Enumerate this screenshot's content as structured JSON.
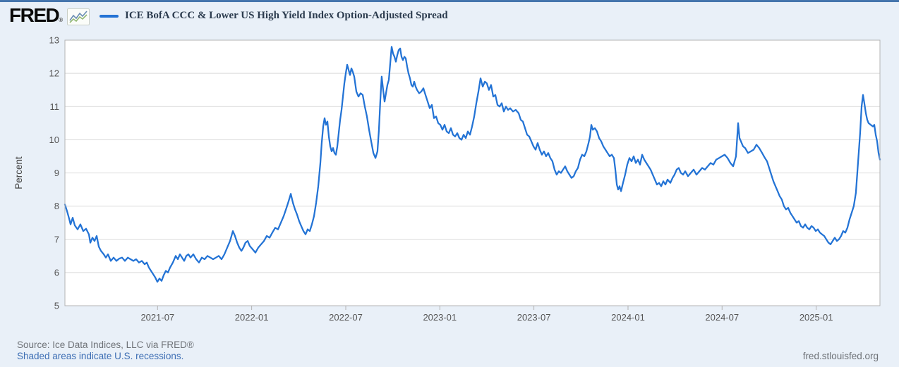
{
  "header": {
    "logo_text": "FRED",
    "logo_registered_mark": "®",
    "series_label": "ICE BofA CCC & Lower US High Yield Index Option-Adjusted Spread"
  },
  "footer": {
    "source": "Source: Ice Data Indices, LLC via FRED®",
    "recession_note": "Shaded areas indicate U.S. recessions.",
    "site": "fred.stlouisfed.org"
  },
  "colors": {
    "line": "#2373d5",
    "top_bar": "#4575ad",
    "page_bg": "#e9f0f8",
    "plot_bg": "#ffffff",
    "grid": "#d9d9d9",
    "plot_border": "#b3b3b3",
    "tick_text": "#555555",
    "axis_label_text": "#444444",
    "source_text": "#6e7277",
    "link_text": "#3d6eb4",
    "title_text": "#2b3b4e"
  },
  "chart_data": {
    "type": "line",
    "title": "ICE BofA CCC & Lower US High Yield Index Option-Adjusted Spread",
    "ylabel": "Percent",
    "ylim": [
      5,
      13
    ],
    "y_ticks": [
      5,
      6,
      7,
      8,
      9,
      10,
      11,
      12,
      13
    ],
    "grid": true,
    "legend_position": "top",
    "x_range": [
      "2021-01",
      "2025-05"
    ],
    "x_ticks": [
      {
        "label": "2021-07",
        "f": 0.1137
      },
      {
        "label": "2022-01",
        "f": 0.2291
      },
      {
        "label": "2022-07",
        "f": 0.3446
      },
      {
        "label": "2023-01",
        "f": 0.46
      },
      {
        "label": "2023-07",
        "f": 0.5754
      },
      {
        "label": "2024-01",
        "f": 0.6909
      },
      {
        "label": "2024-07",
        "f": 0.8063
      },
      {
        "label": "2025-01",
        "f": 0.9218
      }
    ],
    "points_format": "[fraction_of_x_axis, percent]",
    "points": [
      [
        0.0,
        8.05
      ],
      [
        0.0026,
        7.85
      ],
      [
        0.0052,
        7.62
      ],
      [
        0.0069,
        7.45
      ],
      [
        0.0095,
        7.65
      ],
      [
        0.0121,
        7.42
      ],
      [
        0.0156,
        7.3
      ],
      [
        0.019,
        7.45
      ],
      [
        0.0225,
        7.25
      ],
      [
        0.026,
        7.32
      ],
      [
        0.0294,
        7.15
      ],
      [
        0.0312,
        6.9
      ],
      [
        0.0338,
        7.05
      ],
      [
        0.0364,
        6.95
      ],
      [
        0.039,
        7.1
      ],
      [
        0.0416,
        6.78
      ],
      [
        0.0442,
        6.65
      ],
      [
        0.0476,
        6.55
      ],
      [
        0.0502,
        6.45
      ],
      [
        0.0528,
        6.55
      ],
      [
        0.0563,
        6.35
      ],
      [
        0.0597,
        6.45
      ],
      [
        0.0632,
        6.35
      ],
      [
        0.0667,
        6.42
      ],
      [
        0.0701,
        6.45
      ],
      [
        0.0736,
        6.35
      ],
      [
        0.0771,
        6.45
      ],
      [
        0.0805,
        6.4
      ],
      [
        0.084,
        6.35
      ],
      [
        0.0874,
        6.4
      ],
      [
        0.0909,
        6.3
      ],
      [
        0.0944,
        6.35
      ],
      [
        0.0978,
        6.25
      ],
      [
        0.1004,
        6.3
      ],
      [
        0.103,
        6.15
      ],
      [
        0.1056,
        6.05
      ],
      [
        0.1082,
        5.95
      ],
      [
        0.1108,
        5.85
      ],
      [
        0.1134,
        5.72
      ],
      [
        0.116,
        5.82
      ],
      [
        0.1186,
        5.75
      ],
      [
        0.1212,
        5.92
      ],
      [
        0.1238,
        6.05
      ],
      [
        0.1264,
        6.0
      ],
      [
        0.129,
        6.15
      ],
      [
        0.1325,
        6.3
      ],
      [
        0.1359,
        6.5
      ],
      [
        0.1385,
        6.4
      ],
      [
        0.1411,
        6.55
      ],
      [
        0.1437,
        6.45
      ],
      [
        0.1463,
        6.35
      ],
      [
        0.1489,
        6.5
      ],
      [
        0.1515,
        6.55
      ],
      [
        0.1541,
        6.45
      ],
      [
        0.1576,
        6.55
      ],
      [
        0.161,
        6.4
      ],
      [
        0.1645,
        6.3
      ],
      [
        0.168,
        6.45
      ],
      [
        0.1714,
        6.4
      ],
      [
        0.1749,
        6.5
      ],
      [
        0.1784,
        6.45
      ],
      [
        0.1818,
        6.4
      ],
      [
        0.1853,
        6.45
      ],
      [
        0.1887,
        6.5
      ],
      [
        0.1922,
        6.4
      ],
      [
        0.1957,
        6.55
      ],
      [
        0.1991,
        6.75
      ],
      [
        0.2026,
        6.95
      ],
      [
        0.2061,
        7.25
      ],
      [
        0.2087,
        7.1
      ],
      [
        0.2113,
        6.9
      ],
      [
        0.2139,
        6.75
      ],
      [
        0.2165,
        6.65
      ],
      [
        0.219,
        6.75
      ],
      [
        0.2216,
        6.9
      ],
      [
        0.2242,
        6.95
      ],
      [
        0.2268,
        6.8
      ],
      [
        0.2303,
        6.7
      ],
      [
        0.2338,
        6.6
      ],
      [
        0.2372,
        6.75
      ],
      [
        0.2407,
        6.85
      ],
      [
        0.2442,
        6.95
      ],
      [
        0.2476,
        7.1
      ],
      [
        0.2511,
        7.05
      ],
      [
        0.2545,
        7.2
      ],
      [
        0.258,
        7.35
      ],
      [
        0.2615,
        7.3
      ],
      [
        0.2649,
        7.5
      ],
      [
        0.2684,
        7.7
      ],
      [
        0.2719,
        7.95
      ],
      [
        0.2745,
        8.15
      ],
      [
        0.2771,
        8.37
      ],
      [
        0.2797,
        8.1
      ],
      [
        0.2823,
        7.9
      ],
      [
        0.2848,
        7.75
      ],
      [
        0.2874,
        7.55
      ],
      [
        0.29,
        7.4
      ],
      [
        0.2926,
        7.25
      ],
      [
        0.2952,
        7.15
      ],
      [
        0.2978,
        7.3
      ],
      [
        0.3004,
        7.25
      ],
      [
        0.303,
        7.45
      ],
      [
        0.3056,
        7.7
      ],
      [
        0.3082,
        8.1
      ],
      [
        0.3108,
        8.6
      ],
      [
        0.3134,
        9.3
      ],
      [
        0.3151,
        9.9
      ],
      [
        0.3169,
        10.4
      ],
      [
        0.3186,
        10.65
      ],
      [
        0.3203,
        10.45
      ],
      [
        0.3221,
        10.55
      ],
      [
        0.3238,
        10.1
      ],
      [
        0.3255,
        9.8
      ],
      [
        0.3273,
        9.65
      ],
      [
        0.329,
        9.75
      ],
      [
        0.3307,
        9.6
      ],
      [
        0.3325,
        9.55
      ],
      [
        0.3342,
        9.8
      ],
      [
        0.3359,
        10.2
      ],
      [
        0.3377,
        10.6
      ],
      [
        0.3394,
        10.9
      ],
      [
        0.3411,
        11.3
      ],
      [
        0.3429,
        11.7
      ],
      [
        0.3446,
        12.0
      ],
      [
        0.3463,
        12.26
      ],
      [
        0.3481,
        12.1
      ],
      [
        0.3498,
        11.95
      ],
      [
        0.3515,
        12.15
      ],
      [
        0.3532,
        12.05
      ],
      [
        0.355,
        11.9
      ],
      [
        0.3576,
        11.45
      ],
      [
        0.3602,
        11.3
      ],
      [
        0.3628,
        11.4
      ],
      [
        0.3654,
        11.35
      ],
      [
        0.368,
        11.0
      ],
      [
        0.3706,
        10.7
      ],
      [
        0.3732,
        10.3
      ],
      [
        0.3758,
        9.95
      ],
      [
        0.3784,
        9.6
      ],
      [
        0.381,
        9.45
      ],
      [
        0.3835,
        9.65
      ],
      [
        0.3853,
        10.3
      ],
      [
        0.387,
        11.2
      ],
      [
        0.3887,
        11.9
      ],
      [
        0.3905,
        11.5
      ],
      [
        0.3922,
        11.15
      ],
      [
        0.3939,
        11.4
      ],
      [
        0.3957,
        11.65
      ],
      [
        0.3974,
        11.8
      ],
      [
        0.3991,
        12.3
      ],
      [
        0.4009,
        12.8
      ],
      [
        0.4026,
        12.6
      ],
      [
        0.4043,
        12.5
      ],
      [
        0.4061,
        12.35
      ],
      [
        0.4078,
        12.55
      ],
      [
        0.4095,
        12.7
      ],
      [
        0.4113,
        12.75
      ],
      [
        0.413,
        12.5
      ],
      [
        0.4147,
        12.4
      ],
      [
        0.4165,
        12.5
      ],
      [
        0.4182,
        12.45
      ],
      [
        0.4199,
        12.2
      ],
      [
        0.4216,
        12.0
      ],
      [
        0.4234,
        11.85
      ],
      [
        0.4251,
        11.65
      ],
      [
        0.4268,
        11.6
      ],
      [
        0.4286,
        11.75
      ],
      [
        0.4303,
        11.6
      ],
      [
        0.432,
        11.5
      ],
      [
        0.4346,
        11.4
      ],
      [
        0.4372,
        11.45
      ],
      [
        0.4398,
        11.55
      ],
      [
        0.4424,
        11.35
      ],
      [
        0.445,
        11.15
      ],
      [
        0.4476,
        10.95
      ],
      [
        0.4502,
        11.05
      ],
      [
        0.4528,
        10.65
      ],
      [
        0.4554,
        10.7
      ],
      [
        0.458,
        10.5
      ],
      [
        0.4606,
        10.45
      ],
      [
        0.4632,
        10.3
      ],
      [
        0.4658,
        10.45
      ],
      [
        0.4684,
        10.25
      ],
      [
        0.471,
        10.2
      ],
      [
        0.4736,
        10.35
      ],
      [
        0.4762,
        10.15
      ],
      [
        0.4788,
        10.1
      ],
      [
        0.4814,
        10.2
      ],
      [
        0.484,
        10.05
      ],
      [
        0.4866,
        10.0
      ],
      [
        0.4892,
        10.15
      ],
      [
        0.4918,
        10.05
      ],
      [
        0.4944,
        10.25
      ],
      [
        0.497,
        10.15
      ],
      [
        0.4996,
        10.4
      ],
      [
        0.5022,
        10.7
      ],
      [
        0.5048,
        11.1
      ],
      [
        0.5074,
        11.45
      ],
      [
        0.51,
        11.85
      ],
      [
        0.5126,
        11.6
      ],
      [
        0.5152,
        11.75
      ],
      [
        0.5177,
        11.7
      ],
      [
        0.5203,
        11.5
      ],
      [
        0.5229,
        11.65
      ],
      [
        0.5255,
        11.3
      ],
      [
        0.5281,
        11.35
      ],
      [
        0.5307,
        11.05
      ],
      [
        0.5333,
        11.0
      ],
      [
        0.5359,
        11.1
      ],
      [
        0.5385,
        10.85
      ],
      [
        0.5411,
        11.0
      ],
      [
        0.5437,
        10.9
      ],
      [
        0.5463,
        10.95
      ],
      [
        0.5498,
        10.85
      ],
      [
        0.5532,
        10.9
      ],
      [
        0.5567,
        10.8
      ],
      [
        0.5593,
        10.6
      ],
      [
        0.5619,
        10.55
      ],
      [
        0.5645,
        10.35
      ],
      [
        0.5671,
        10.15
      ],
      [
        0.5697,
        10.1
      ],
      [
        0.5723,
        9.95
      ],
      [
        0.5749,
        9.8
      ],
      [
        0.5775,
        9.7
      ],
      [
        0.58,
        9.9
      ],
      [
        0.5826,
        9.7
      ],
      [
        0.5852,
        9.55
      ],
      [
        0.5878,
        9.65
      ],
      [
        0.5904,
        9.5
      ],
      [
        0.593,
        9.6
      ],
      [
        0.5956,
        9.45
      ],
      [
        0.5982,
        9.35
      ],
      [
        0.6008,
        9.1
      ],
      [
        0.6034,
        8.95
      ],
      [
        0.606,
        9.05
      ],
      [
        0.6086,
        9.0
      ],
      [
        0.6112,
        9.1
      ],
      [
        0.6138,
        9.2
      ],
      [
        0.6164,
        9.05
      ],
      [
        0.619,
        8.95
      ],
      [
        0.6216,
        8.85
      ],
      [
        0.6242,
        8.9
      ],
      [
        0.6268,
        9.05
      ],
      [
        0.6294,
        9.15
      ],
      [
        0.632,
        9.4
      ],
      [
        0.6346,
        9.55
      ],
      [
        0.6372,
        9.5
      ],
      [
        0.6398,
        9.65
      ],
      [
        0.6424,
        9.9
      ],
      [
        0.6442,
        10.1
      ],
      [
        0.6459,
        10.45
      ],
      [
        0.6476,
        10.3
      ],
      [
        0.6502,
        10.35
      ],
      [
        0.6528,
        10.25
      ],
      [
        0.6554,
        10.05
      ],
      [
        0.658,
        9.95
      ],
      [
        0.6606,
        9.8
      ],
      [
        0.6632,
        9.7
      ],
      [
        0.6658,
        9.6
      ],
      [
        0.6684,
        9.5
      ],
      [
        0.671,
        9.55
      ],
      [
        0.6736,
        9.45
      ],
      [
        0.6753,
        9.1
      ],
      [
        0.6771,
        8.65
      ],
      [
        0.6788,
        8.5
      ],
      [
        0.6805,
        8.6
      ],
      [
        0.6823,
        8.45
      ],
      [
        0.6848,
        8.7
      ],
      [
        0.6874,
        8.95
      ],
      [
        0.69,
        9.25
      ],
      [
        0.6926,
        9.45
      ],
      [
        0.6952,
        9.35
      ],
      [
        0.6978,
        9.5
      ],
      [
        0.7004,
        9.3
      ],
      [
        0.703,
        9.4
      ],
      [
        0.7056,
        9.25
      ],
      [
        0.7082,
        9.55
      ],
      [
        0.7108,
        9.4
      ],
      [
        0.7134,
        9.3
      ],
      [
        0.716,
        9.2
      ],
      [
        0.7186,
        9.1
      ],
      [
        0.7212,
        8.95
      ],
      [
        0.7238,
        8.8
      ],
      [
        0.7264,
        8.65
      ],
      [
        0.729,
        8.7
      ],
      [
        0.7316,
        8.6
      ],
      [
        0.7342,
        8.75
      ],
      [
        0.7368,
        8.65
      ],
      [
        0.7394,
        8.8
      ],
      [
        0.7429,
        8.7
      ],
      [
        0.7455,
        8.85
      ],
      [
        0.748,
        8.95
      ],
      [
        0.7506,
        9.1
      ],
      [
        0.7532,
        9.15
      ],
      [
        0.7558,
        9.0
      ],
      [
        0.7584,
        8.95
      ],
      [
        0.761,
        9.05
      ],
      [
        0.7645,
        8.9
      ],
      [
        0.7679,
        9.0
      ],
      [
        0.7714,
        9.1
      ],
      [
        0.7749,
        8.95
      ],
      [
        0.7784,
        9.05
      ],
      [
        0.7818,
        9.15
      ],
      [
        0.7853,
        9.1
      ],
      [
        0.7887,
        9.2
      ],
      [
        0.7922,
        9.3
      ],
      [
        0.7957,
        9.25
      ],
      [
        0.7991,
        9.4
      ],
      [
        0.8026,
        9.45
      ],
      [
        0.8061,
        9.5
      ],
      [
        0.8095,
        9.55
      ],
      [
        0.813,
        9.45
      ],
      [
        0.8165,
        9.3
      ],
      [
        0.8199,
        9.2
      ],
      [
        0.8234,
        9.5
      ],
      [
        0.826,
        10.5
      ],
      [
        0.8277,
        10.05
      ],
      [
        0.8294,
        9.95
      ],
      [
        0.832,
        9.8
      ],
      [
        0.8346,
        9.75
      ],
      [
        0.8381,
        9.6
      ],
      [
        0.8416,
        9.65
      ],
      [
        0.845,
        9.7
      ],
      [
        0.8485,
        9.85
      ],
      [
        0.8519,
        9.75
      ],
      [
        0.8554,
        9.6
      ],
      [
        0.8589,
        9.45
      ],
      [
        0.8615,
        9.35
      ],
      [
        0.8641,
        9.15
      ],
      [
        0.8667,
        8.95
      ],
      [
        0.8693,
        8.75
      ],
      [
        0.8719,
        8.6
      ],
      [
        0.8745,
        8.45
      ],
      [
        0.877,
        8.3
      ],
      [
        0.8796,
        8.2
      ],
      [
        0.8822,
        8.0
      ],
      [
        0.8848,
        7.9
      ],
      [
        0.8874,
        7.95
      ],
      [
        0.89,
        7.8
      ],
      [
        0.8926,
        7.7
      ],
      [
        0.8952,
        7.6
      ],
      [
        0.8978,
        7.5
      ],
      [
        0.9004,
        7.55
      ],
      [
        0.903,
        7.4
      ],
      [
        0.9056,
        7.35
      ],
      [
        0.9082,
        7.45
      ],
      [
        0.9108,
        7.35
      ],
      [
        0.9134,
        7.3
      ],
      [
        0.916,
        7.4
      ],
      [
        0.9186,
        7.35
      ],
      [
        0.9212,
        7.25
      ],
      [
        0.9238,
        7.3
      ],
      [
        0.9264,
        7.2
      ],
      [
        0.929,
        7.15
      ],
      [
        0.9316,
        7.1
      ],
      [
        0.9342,
        7.0
      ],
      [
        0.9368,
        6.9
      ],
      [
        0.9394,
        6.85
      ],
      [
        0.942,
        6.95
      ],
      [
        0.9446,
        7.05
      ],
      [
        0.9472,
        6.95
      ],
      [
        0.9497,
        7.0
      ],
      [
        0.9523,
        7.1
      ],
      [
        0.9549,
        7.25
      ],
      [
        0.9575,
        7.2
      ],
      [
        0.9601,
        7.35
      ],
      [
        0.9627,
        7.6
      ],
      [
        0.9653,
        7.8
      ],
      [
        0.9679,
        8.0
      ],
      [
        0.9705,
        8.4
      ],
      [
        0.9731,
        9.3
      ],
      [
        0.9757,
        10.2
      ],
      [
        0.9775,
        11.0
      ],
      [
        0.9792,
        11.35
      ],
      [
        0.9809,
        11.1
      ],
      [
        0.9827,
        10.8
      ],
      [
        0.9844,
        10.6
      ],
      [
        0.9861,
        10.5
      ],
      [
        0.9887,
        10.45
      ],
      [
        0.9913,
        10.4
      ],
      [
        0.9931,
        10.45
      ],
      [
        0.9948,
        10.15
      ],
      [
        0.9965,
        9.95
      ],
      [
        0.9983,
        9.6
      ],
      [
        1.0,
        9.4
      ]
    ]
  }
}
